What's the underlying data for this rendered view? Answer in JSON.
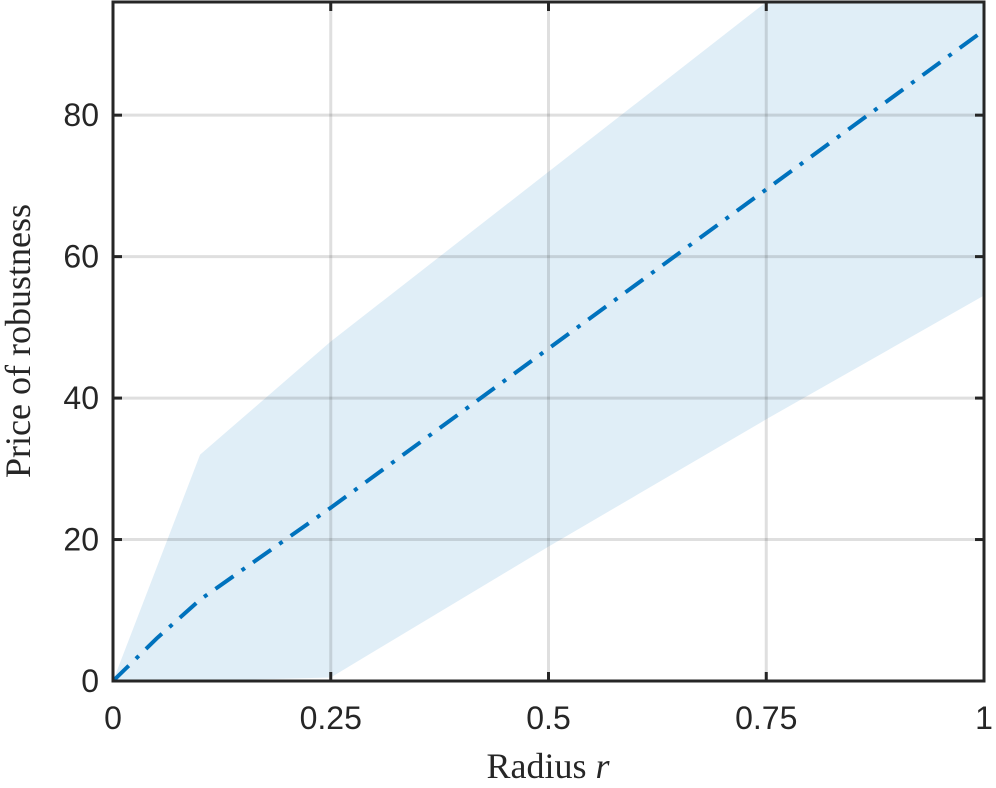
{
  "chart_data": {
    "type": "line",
    "title": "",
    "xlabel": "Radius",
    "xlabel_symbol": "r",
    "ylabel": "Price of robustness",
    "xlim": [
      0,
      1
    ],
    "ylim": [
      0,
      96
    ],
    "xticks": [
      0,
      0.25,
      0.5,
      0.75,
      1
    ],
    "xtick_labels": [
      "0",
      "0.25",
      "0.5",
      "0.75",
      "1"
    ],
    "yticks": [
      0,
      20,
      40,
      60,
      80
    ],
    "ytick_labels": [
      "0",
      "20",
      "40",
      "60",
      "80"
    ],
    "grid": true,
    "series": [
      {
        "x": [
          0,
          0.05,
          0.1,
          0.25,
          0.5,
          0.75,
          1
        ],
        "values": [
          0,
          6,
          11.5,
          24.5,
          47,
          69.5,
          92
        ],
        "line_style": "dash-dot",
        "color": "#0072BD"
      }
    ],
    "band": {
      "x": [
        0,
        0.1,
        0.25,
        0.5,
        0.75,
        1
      ],
      "upper": [
        0,
        32,
        48,
        72,
        96,
        120
      ],
      "lower": [
        0,
        0,
        0.5,
        19,
        37,
        54.5
      ],
      "color": "#0072BD",
      "opacity": 0.12
    }
  }
}
